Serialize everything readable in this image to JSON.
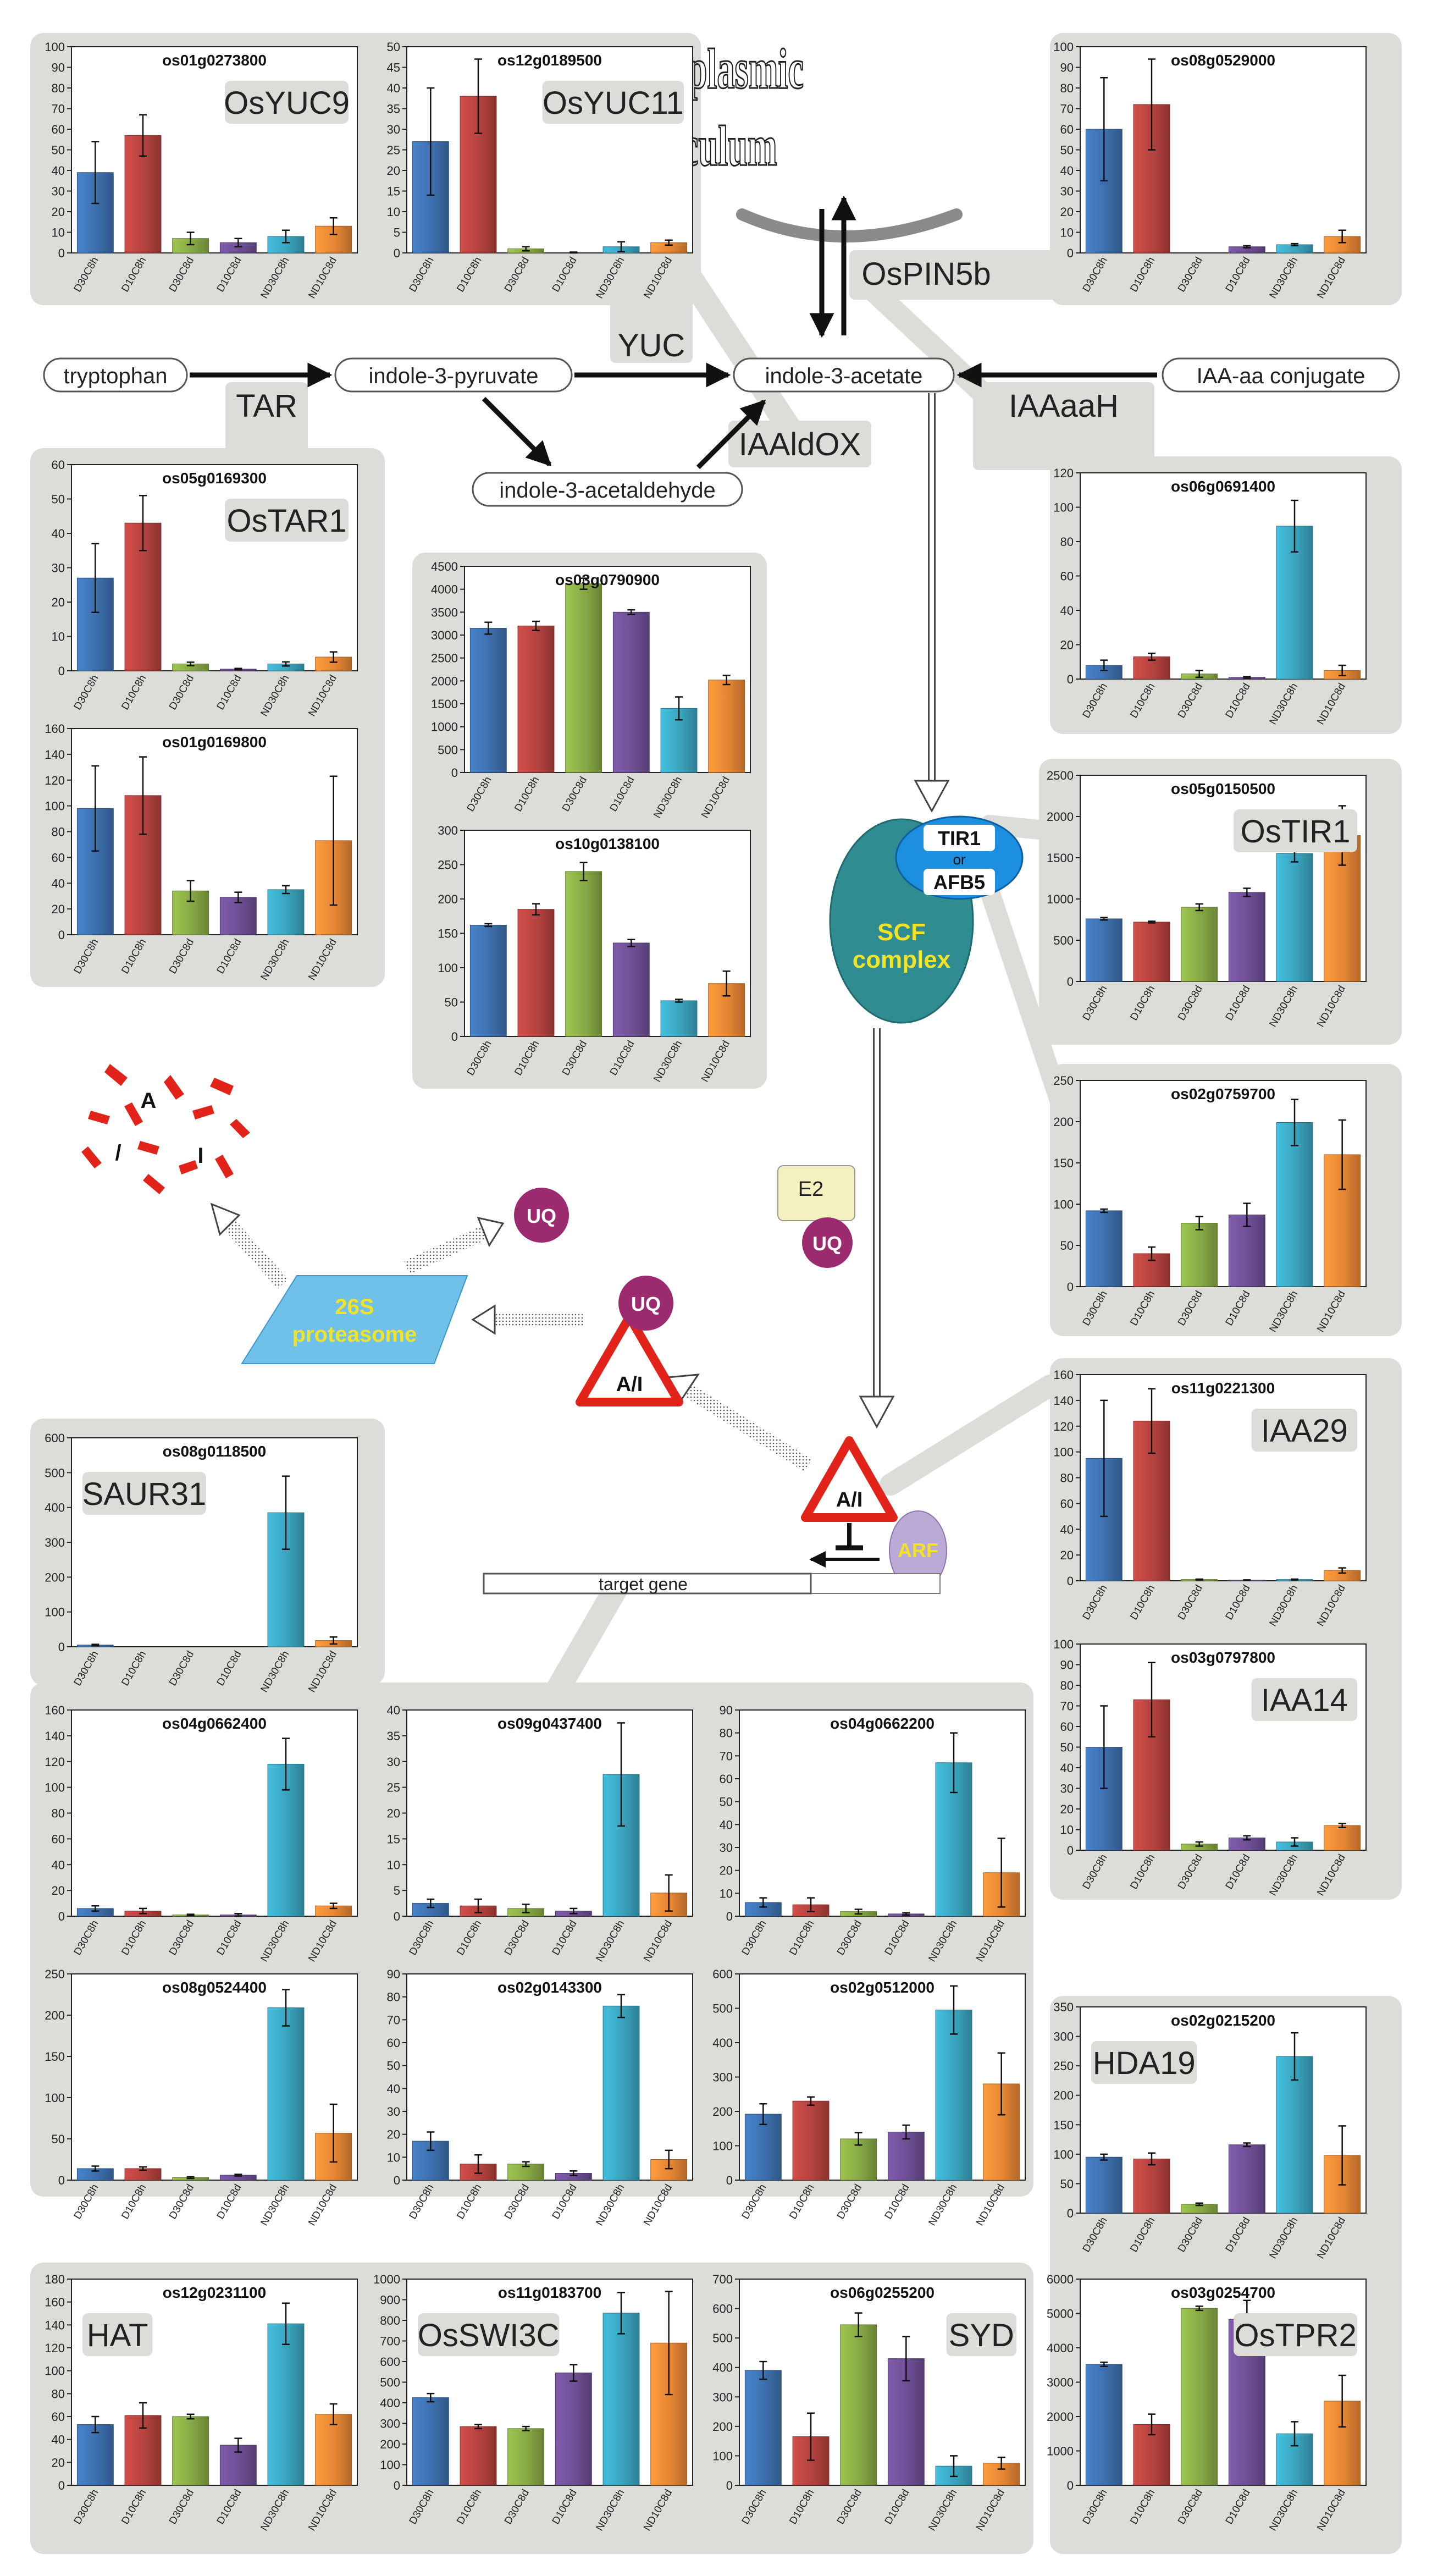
{
  "categories": [
    "D30C8h",
    "D10C8h",
    "D30C8d",
    "D10C8d",
    "ND30C8h",
    "ND10C8d"
  ],
  "colors": [
    "#3d6fad",
    "#b3423e",
    "#86a845",
    "#6d4e93",
    "#3aa3bd",
    "#e58534"
  ],
  "nodes": {
    "tryptophan": "tryptophan",
    "ipa": "indole-3-pyruvate",
    "iaa": "indole-3-acetate",
    "iaa_conj": "IAA-aa conjugate",
    "iaald": "indole-3-acetaldehyde",
    "target_gene": "target gene"
  },
  "enzymes": {
    "tar": "TAR",
    "yuc": "YUC",
    "iaaldox": "IAAldOX",
    "iaaaah": "IAAaaH",
    "ospin5b": "OsPIN5b"
  },
  "er_label": [
    "endoplasmic",
    "reticulum"
  ],
  "complex": {
    "tir1": "TIR1",
    "or": "or",
    "afb5": "AFB5",
    "scf": [
      "SCF",
      "complex"
    ],
    "proteasome": [
      "26S",
      "proteasome"
    ],
    "e2": "E2",
    "uq": "UQ",
    "ai": "A/I",
    "arf": "ARF",
    "fragments": [
      "A",
      "/",
      "I"
    ]
  },
  "chart_data": [
    {
      "id": "os01g0273800",
      "type": "bar",
      "gene_name": "OsYUC9",
      "ylim": [
        0,
        100
      ],
      "ticks": [
        0,
        10,
        20,
        30,
        40,
        50,
        60,
        70,
        80,
        90,
        100
      ],
      "values": [
        39,
        57,
        7,
        5,
        8,
        13
      ],
      "errors": [
        15,
        10,
        3,
        2,
        3,
        4
      ]
    },
    {
      "id": "os12g0189500",
      "type": "bar",
      "gene_name": "OsYUC11",
      "ylim": [
        0,
        50
      ],
      "ticks": [
        0,
        5,
        10,
        15,
        20,
        25,
        30,
        35,
        40,
        45,
        50
      ],
      "values": [
        27,
        38,
        1,
        0,
        1.5,
        2.5
      ],
      "errors": [
        13,
        9,
        0.5,
        0.2,
        1.2,
        0.6
      ]
    },
    {
      "id": "os08g0529000",
      "type": "bar",
      "gene_name": "",
      "ylim": [
        0,
        100
      ],
      "ticks": [
        0,
        10,
        20,
        30,
        40,
        50,
        60,
        70,
        80,
        90,
        100
      ],
      "values": [
        60,
        72,
        0,
        3,
        4,
        8
      ],
      "errors": [
        25,
        22,
        0,
        0.5,
        0.5,
        3
      ]
    },
    {
      "id": "os05g0169300",
      "type": "bar",
      "gene_name": "OsTAR1",
      "ylim": [
        0,
        60
      ],
      "ticks": [
        0,
        10,
        20,
        30,
        40,
        50,
        60
      ],
      "values": [
        27,
        43,
        2,
        0.5,
        2,
        4
      ],
      "errors": [
        10,
        8,
        0.5,
        0.2,
        0.6,
        1.5
      ]
    },
    {
      "id": "os01g0169800",
      "type": "bar",
      "gene_name": "",
      "ylim": [
        0,
        160
      ],
      "ticks": [
        0,
        20,
        40,
        60,
        80,
        100,
        120,
        140,
        160
      ],
      "values": [
        98,
        108,
        34,
        29,
        35,
        73
      ],
      "errors": [
        33,
        30,
        8,
        4,
        3,
        50
      ]
    },
    {
      "id": "os03g0790900",
      "type": "bar",
      "gene_name": "",
      "ylim": [
        0,
        4500
      ],
      "ticks": [
        0,
        500,
        1000,
        1500,
        2000,
        2500,
        3000,
        3500,
        4000,
        4500
      ],
      "values": [
        3150,
        3200,
        4120,
        3500,
        1400,
        2020
      ],
      "errors": [
        130,
        100,
        120,
        50,
        250,
        100
      ]
    },
    {
      "id": "os10g0138100",
      "type": "bar",
      "gene_name": "",
      "ylim": [
        0,
        300
      ],
      "ticks": [
        0,
        50,
        100,
        150,
        200,
        250,
        300
      ],
      "values": [
        162,
        185,
        240,
        136,
        52,
        77
      ],
      "errors": [
        2,
        8,
        13,
        5,
        2,
        18
      ]
    },
    {
      "id": "os06g0691400",
      "type": "bar",
      "gene_name": "",
      "ylim": [
        0,
        120
      ],
      "ticks": [
        0,
        20,
        40,
        60,
        80,
        100,
        120
      ],
      "values": [
        8,
        13,
        3,
        1,
        89,
        5
      ],
      "errors": [
        3,
        2,
        2,
        0.5,
        15,
        3
      ]
    },
    {
      "id": "os05g0150500",
      "type": "bar",
      "gene_name": "OsTIR1",
      "ylim": [
        0,
        2500
      ],
      "ticks": [
        0,
        500,
        1000,
        1500,
        2000,
        2500
      ],
      "values": [
        760,
        720,
        900,
        1080,
        1550,
        1770
      ],
      "errors": [
        15,
        10,
        40,
        50,
        100,
        360
      ]
    },
    {
      "id": "os02g0759700",
      "type": "bar",
      "gene_name": "",
      "ylim": [
        0,
        250
      ],
      "ticks": [
        0,
        50,
        100,
        150,
        200,
        250
      ],
      "values": [
        92,
        40,
        77,
        87,
        199,
        160
      ],
      "errors": [
        2,
        8,
        8,
        14,
        28,
        42
      ]
    },
    {
      "id": "os11g0221300",
      "type": "bar",
      "gene_name": "IAA29",
      "ylim": [
        0,
        160
      ],
      "ticks": [
        0,
        20,
        40,
        60,
        80,
        100,
        120,
        140,
        160
      ],
      "values": [
        95,
        124,
        1,
        0.5,
        1,
        8
      ],
      "errors": [
        45,
        25,
        0.3,
        0.2,
        0.3,
        2
      ]
    },
    {
      "id": "os03g0797800",
      "type": "bar",
      "gene_name": "IAA14",
      "ylim": [
        0,
        100
      ],
      "ticks": [
        0,
        10,
        20,
        30,
        40,
        50,
        60,
        70,
        80,
        90,
        100
      ],
      "values": [
        50,
        73,
        3,
        6,
        4,
        12
      ],
      "errors": [
        20,
        18,
        1,
        1,
        2,
        1
      ]
    },
    {
      "id": "os08g0118500",
      "type": "bar",
      "gene_name": "SAUR31",
      "ylim": [
        0,
        600
      ],
      "ticks": [
        0,
        100,
        200,
        300,
        400,
        500,
        600
      ],
      "values": [
        5,
        0,
        0,
        0,
        385,
        18
      ],
      "errors": [
        2,
        0,
        0,
        0,
        105,
        10
      ]
    },
    {
      "id": "os04g0662400",
      "type": "bar",
      "gene_name": "",
      "ylim": [
        0,
        160
      ],
      "ticks": [
        0,
        20,
        40,
        60,
        80,
        100,
        120,
        140,
        160
      ],
      "values": [
        6,
        4,
        1,
        1,
        118,
        8
      ],
      "errors": [
        2,
        2,
        0.5,
        1,
        20,
        2
      ]
    },
    {
      "id": "os09g0437400",
      "type": "bar",
      "gene_name": "",
      "ylim": [
        0,
        40
      ],
      "ticks": [
        0,
        5,
        10,
        15,
        20,
        25,
        30,
        35,
        40
      ],
      "values": [
        2.5,
        2,
        1.5,
        1,
        27.5,
        4.5
      ],
      "errors": [
        0.8,
        1.3,
        0.8,
        0.5,
        10,
        3.5
      ]
    },
    {
      "id": "os04g0662200",
      "type": "bar",
      "gene_name": "",
      "ylim": [
        0,
        90
      ],
      "ticks": [
        0,
        10,
        20,
        30,
        40,
        50,
        60,
        70,
        80,
        90
      ],
      "values": [
        6,
        5,
        2,
        1,
        67,
        19
      ],
      "errors": [
        2,
        3,
        1,
        0.5,
        13,
        15
      ]
    },
    {
      "id": "os08g0524400",
      "type": "bar",
      "gene_name": "",
      "ylim": [
        0,
        250
      ],
      "ticks": [
        0,
        50,
        100,
        150,
        200,
        250
      ],
      "values": [
        14,
        14,
        3,
        6,
        209,
        57
      ],
      "errors": [
        3,
        2,
        1,
        1,
        22,
        35
      ]
    },
    {
      "id": "os02g0143300",
      "type": "bar",
      "gene_name": "",
      "ylim": [
        0,
        90
      ],
      "ticks": [
        0,
        10,
        20,
        30,
        40,
        50,
        60,
        70,
        80,
        90
      ],
      "values": [
        17,
        7,
        7,
        3,
        76,
        9
      ],
      "errors": [
        4,
        4,
        1,
        1,
        5,
        4
      ]
    },
    {
      "id": "os02g0512000",
      "type": "bar",
      "gene_name": "",
      "ylim": [
        0,
        600
      ],
      "ticks": [
        0,
        100,
        200,
        300,
        400,
        500,
        600
      ],
      "values": [
        192,
        230,
        120,
        140,
        495,
        280
      ],
      "errors": [
        30,
        12,
        18,
        20,
        70,
        90
      ]
    },
    {
      "id": "os02g0215200",
      "type": "bar",
      "gene_name": "HDA19",
      "ylim": [
        0,
        350
      ],
      "ticks": [
        0,
        50,
        100,
        150,
        200,
        250,
        300,
        350
      ],
      "values": [
        95,
        92,
        15,
        116,
        266,
        98
      ],
      "errors": [
        5,
        10,
        2,
        3,
        40,
        50
      ]
    },
    {
      "id": "os12g0231100",
      "type": "bar",
      "gene_name": "HAT",
      "ylim": [
        0,
        180
      ],
      "ticks": [
        0,
        20,
        40,
        60,
        80,
        100,
        120,
        140,
        160,
        180
      ],
      "values": [
        53,
        61,
        60,
        35,
        141,
        62
      ],
      "errors": [
        7,
        11,
        2,
        6,
        18,
        9
      ]
    },
    {
      "id": "os11g0183700",
      "type": "bar",
      "gene_name": "OsSWI3C",
      "ylim": [
        0,
        1000
      ],
      "ticks": [
        0,
        100,
        200,
        300,
        400,
        500,
        600,
        700,
        800,
        900,
        1000
      ],
      "values": [
        425,
        285,
        275,
        545,
        835,
        690
      ],
      "errors": [
        20,
        10,
        10,
        40,
        100,
        250
      ]
    },
    {
      "id": "os06g0255200",
      "type": "bar",
      "gene_name": "SYD",
      "ylim": [
        0,
        700
      ],
      "ticks": [
        0,
        100,
        200,
        300,
        400,
        500,
        600,
        700
      ],
      "values": [
        390,
        165,
        545,
        430,
        65,
        75
      ],
      "errors": [
        30,
        80,
        40,
        75,
        35,
        20
      ]
    },
    {
      "id": "os03g0254700",
      "type": "bar",
      "gene_name": "OsTPR2",
      "ylim": [
        0,
        6000
      ],
      "ticks": [
        0,
        1000,
        2000,
        3000,
        4000,
        5000,
        6000
      ],
      "values": [
        3520,
        1770,
        5150,
        4830,
        1500,
        2450
      ],
      "errors": [
        60,
        300,
        60,
        550,
        350,
        750
      ]
    }
  ]
}
